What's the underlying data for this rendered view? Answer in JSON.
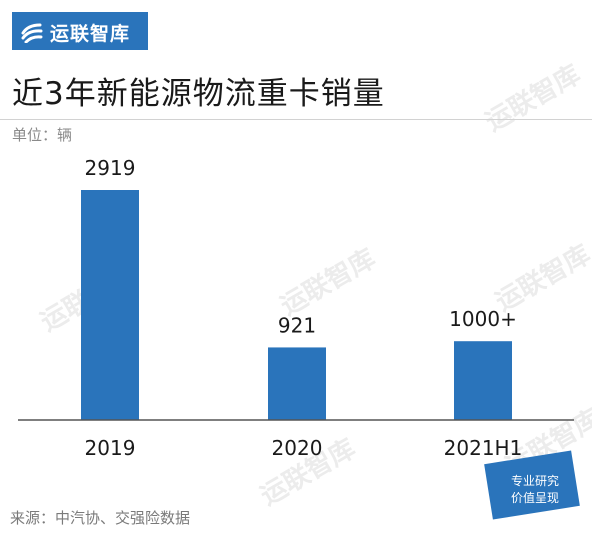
{
  "brand": {
    "name": "运联智库",
    "color": "#2a74bb"
  },
  "chart_data": {
    "type": "bar",
    "title": "近3年新能源物流重卡销量",
    "unit_label": "单位：辆",
    "categories": [
      "2019",
      "2020",
      "2021H1"
    ],
    "values": [
      2919,
      921,
      1000
    ],
    "data_labels": [
      "2919",
      "921",
      "1000+"
    ],
    "bar_color": "#2a74bb",
    "ylim": [
      0,
      2919
    ],
    "grid": false,
    "legend": "none"
  },
  "footer": {
    "source": "来源：中汽协、交强险数据"
  },
  "badge": {
    "line1": "专业研究",
    "line2": "价值呈现"
  }
}
